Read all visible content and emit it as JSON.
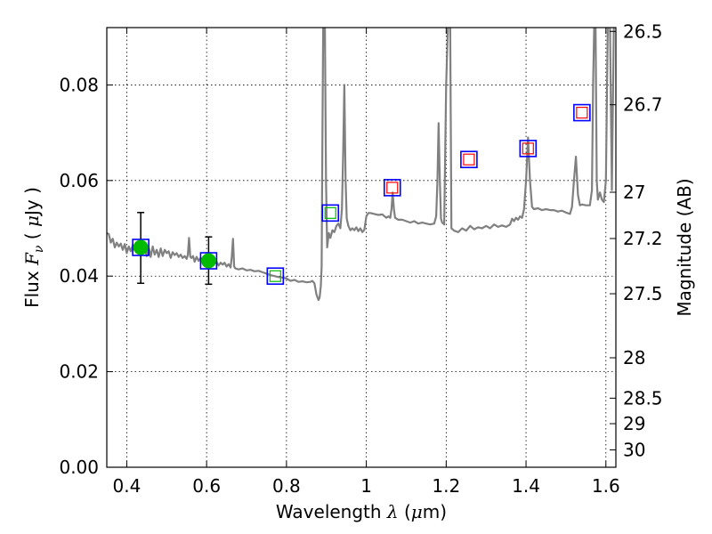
{
  "chart_data": {
    "type": "line",
    "xlabel": {
      "prefix": "Wavelength  ",
      "symbol": "λ",
      "unit_open": " (",
      "unit_mu": "μ",
      "unit_close": "m)"
    },
    "ylabel": {
      "prefix": "Flux  ",
      "symbol": "F",
      "sub": "ν",
      "unit_open": " ( ",
      "unit_mu": "μ",
      "unit_close": "Jy )"
    },
    "y2label": "Magnitude (AB)",
    "xlim": [
      0.35,
      1.625
    ],
    "ylim": [
      0.0,
      0.092
    ],
    "grid": true,
    "x_ticks": [
      {
        "v": 0.4,
        "label": "0.4"
      },
      {
        "v": 0.6,
        "label": "0.6"
      },
      {
        "v": 0.8,
        "label": "0.8"
      },
      {
        "v": 1.0,
        "label": "1"
      },
      {
        "v": 1.2,
        "label": "1.2"
      },
      {
        "v": 1.4,
        "label": "1.4"
      },
      {
        "v": 1.6,
        "label": "1.6"
      }
    ],
    "y_ticks": [
      {
        "v": 0.0,
        "label": "0.00"
      },
      {
        "v": 0.02,
        "label": "0.02"
      },
      {
        "v": 0.04,
        "label": "0.04"
      },
      {
        "v": 0.06,
        "label": "0.06"
      },
      {
        "v": 0.08,
        "label": "0.08"
      }
    ],
    "mag_ticks": [
      "26.5",
      "26.7",
      "27",
      "27.2",
      "27.5",
      "28",
      "28.5",
      "29",
      "30"
    ],
    "colors": {
      "spectrum": "#808080",
      "detection": "#00bb00",
      "model_box": "#0000ff",
      "limit_box": "#ff0000",
      "model_inner": "#00bb00",
      "errorbar": "#000000"
    },
    "series": [
      {
        "type": "line",
        "points": [
          [
            0.35,
            0.049
          ],
          [
            0.355,
            0.0488
          ],
          [
            0.36,
            0.047
          ],
          [
            0.365,
            0.0478
          ],
          [
            0.37,
            0.046
          ],
          [
            0.375,
            0.047
          ],
          [
            0.38,
            0.0462
          ],
          [
            0.385,
            0.0468
          ],
          [
            0.39,
            0.0455
          ],
          [
            0.395,
            0.0467
          ],
          [
            0.4,
            0.0448
          ],
          [
            0.405,
            0.0462
          ],
          [
            0.41,
            0.0452
          ],
          [
            0.415,
            0.0465
          ],
          [
            0.42,
            0.0455
          ],
          [
            0.425,
            0.047
          ],
          [
            0.43,
            0.0452
          ],
          [
            0.435,
            0.0462
          ],
          [
            0.44,
            0.045
          ],
          [
            0.445,
            0.0458
          ],
          [
            0.45,
            0.0442
          ],
          [
            0.455,
            0.046
          ],
          [
            0.46,
            0.044
          ],
          [
            0.465,
            0.0462
          ],
          [
            0.47,
            0.0445
          ],
          [
            0.475,
            0.0455
          ],
          [
            0.48,
            0.044
          ],
          [
            0.485,
            0.0458
          ],
          [
            0.49,
            0.0442
          ],
          [
            0.495,
            0.0455
          ],
          [
            0.5,
            0.0448
          ],
          [
            0.505,
            0.0452
          ],
          [
            0.51,
            0.0438
          ],
          [
            0.515,
            0.045
          ],
          [
            0.52,
            0.0444
          ],
          [
            0.525,
            0.0448
          ],
          [
            0.53,
            0.044
          ],
          [
            0.535,
            0.0445
          ],
          [
            0.54,
            0.0438
          ],
          [
            0.545,
            0.0442
          ],
          [
            0.55,
            0.0436
          ],
          [
            0.553,
            0.0445
          ],
          [
            0.556,
            0.048
          ],
          [
            0.559,
            0.044
          ],
          [
            0.562,
            0.0438
          ],
          [
            0.566,
            0.0442
          ],
          [
            0.57,
            0.043
          ],
          [
            0.575,
            0.044
          ],
          [
            0.58,
            0.0432
          ],
          [
            0.585,
            0.0438
          ],
          [
            0.59,
            0.0428
          ],
          [
            0.595,
            0.0436
          ],
          [
            0.6,
            0.043
          ],
          [
            0.605,
            0.0434
          ],
          [
            0.61,
            0.0428
          ],
          [
            0.615,
            0.0432
          ],
          [
            0.62,
            0.0426
          ],
          [
            0.625,
            0.043
          ],
          [
            0.63,
            0.0422
          ],
          [
            0.635,
            0.0428
          ],
          [
            0.64,
            0.0424
          ],
          [
            0.645,
            0.0428
          ],
          [
            0.65,
            0.042
          ],
          [
            0.655,
            0.0425
          ],
          [
            0.66,
            0.0418
          ],
          [
            0.663,
            0.044
          ],
          [
            0.666,
            0.0478
          ],
          [
            0.669,
            0.042
          ],
          [
            0.672,
            0.0416
          ],
          [
            0.68,
            0.0414
          ],
          [
            0.69,
            0.0416
          ],
          [
            0.7,
            0.0412
          ],
          [
            0.71,
            0.0413
          ],
          [
            0.72,
            0.041
          ],
          [
            0.73,
            0.0411
          ],
          [
            0.74,
            0.0408
          ],
          [
            0.75,
            0.0405
          ],
          [
            0.76,
            0.0402
          ],
          [
            0.77,
            0.04
          ],
          [
            0.78,
            0.0398
          ],
          [
            0.79,
            0.0397
          ],
          [
            0.8,
            0.0395
          ],
          [
            0.81,
            0.039
          ],
          [
            0.82,
            0.0392
          ],
          [
            0.83,
            0.0388
          ],
          [
            0.84,
            0.0389
          ],
          [
            0.85,
            0.0387
          ],
          [
            0.86,
            0.0388
          ],
          [
            0.865,
            0.039
          ],
          [
            0.87,
            0.0385
          ],
          [
            0.875,
            0.0362
          ],
          [
            0.88,
            0.035
          ],
          [
            0.883,
            0.0355
          ],
          [
            0.886,
            0.038
          ],
          [
            0.888,
            0.042
          ],
          [
            0.89,
            0.07
          ],
          [
            0.892,
            0.094
          ],
          [
            0.896,
            0.094
          ],
          [
            0.899,
            0.06
          ],
          [
            0.902,
            0.046
          ],
          [
            0.906,
            0.049
          ],
          [
            0.91,
            0.048
          ],
          [
            0.915,
            0.0496
          ],
          [
            0.92,
            0.0492
          ],
          [
            0.925,
            0.0505
          ],
          [
            0.93,
            0.051
          ],
          [
            0.935,
            0.05
          ],
          [
            0.939,
            0.054
          ],
          [
            0.942,
            0.066
          ],
          [
            0.945,
            0.08
          ],
          [
            0.948,
            0.06
          ],
          [
            0.951,
            0.052
          ],
          [
            0.955,
            0.0505
          ],
          [
            0.96,
            0.0496
          ],
          [
            0.965,
            0.05
          ],
          [
            0.97,
            0.0496
          ],
          [
            0.975,
            0.0502
          ],
          [
            0.98,
            0.0494
          ],
          [
            0.985,
            0.05
          ],
          [
            0.99,
            0.0492
          ],
          [
            0.995,
            0.0497
          ],
          [
            1.0,
            0.0525
          ],
          [
            1.005,
            0.0532
          ],
          [
            1.01,
            0.0532
          ],
          [
            1.02,
            0.053
          ],
          [
            1.03,
            0.0528
          ],
          [
            1.04,
            0.0529
          ],
          [
            1.05,
            0.0522
          ],
          [
            1.055,
            0.0525
          ],
          [
            1.06,
            0.0522
          ],
          [
            1.063,
            0.054
          ],
          [
            1.066,
            0.0575
          ],
          [
            1.069,
            0.054
          ],
          [
            1.072,
            0.0522
          ],
          [
            1.08,
            0.0518
          ],
          [
            1.09,
            0.0518
          ],
          [
            1.1,
            0.0515
          ],
          [
            1.11,
            0.0512
          ],
          [
            1.12,
            0.0515
          ],
          [
            1.13,
            0.051
          ],
          [
            1.14,
            0.0512
          ],
          [
            1.15,
            0.051
          ],
          [
            1.16,
            0.0508
          ],
          [
            1.17,
            0.051
          ],
          [
            1.175,
            0.0525
          ],
          [
            1.178,
            0.06
          ],
          [
            1.181,
            0.072
          ],
          [
            1.184,
            0.06
          ],
          [
            1.187,
            0.052
          ],
          [
            1.19,
            0.0512
          ],
          [
            1.195,
            0.0508
          ],
          [
            1.2,
            0.08
          ],
          [
            1.205,
            0.094
          ],
          [
            1.21,
            0.094
          ],
          [
            1.213,
            0.05
          ],
          [
            1.22,
            0.0495
          ],
          [
            1.23,
            0.0492
          ],
          [
            1.24,
            0.05
          ],
          [
            1.25,
            0.0495
          ],
          [
            1.26,
            0.0505
          ],
          [
            1.27,
            0.0498
          ],
          [
            1.28,
            0.0502
          ],
          [
            1.29,
            0.05
          ],
          [
            1.3,
            0.0505
          ],
          [
            1.31,
            0.05
          ],
          [
            1.32,
            0.0508
          ],
          [
            1.33,
            0.0503
          ],
          [
            1.34,
            0.0506
          ],
          [
            1.35,
            0.0503
          ],
          [
            1.36,
            0.0508
          ],
          [
            1.365,
            0.052
          ],
          [
            1.37,
            0.0515
          ],
          [
            1.375,
            0.0522
          ],
          [
            1.38,
            0.0518
          ],
          [
            1.385,
            0.0525
          ],
          [
            1.39,
            0.0522
          ],
          [
            1.395,
            0.054
          ],
          [
            1.4,
            0.06
          ],
          [
            1.405,
            0.069
          ],
          [
            1.41,
            0.06
          ],
          [
            1.415,
            0.0545
          ],
          [
            1.42,
            0.054
          ],
          [
            1.43,
            0.0542
          ],
          [
            1.44,
            0.0538
          ],
          [
            1.45,
            0.054
          ],
          [
            1.46,
            0.0538
          ],
          [
            1.47,
            0.0538
          ],
          [
            1.48,
            0.0535
          ],
          [
            1.49,
            0.0537
          ],
          [
            1.5,
            0.0533
          ],
          [
            1.51,
            0.053
          ],
          [
            1.515,
            0.0545
          ],
          [
            1.52,
            0.06
          ],
          [
            1.525,
            0.065
          ],
          [
            1.53,
            0.057
          ],
          [
            1.535,
            0.0548
          ],
          [
            1.54,
            0.055
          ],
          [
            1.55,
            0.0548
          ],
          [
            1.56,
            0.0548
          ],
          [
            1.565,
            0.058
          ],
          [
            1.568,
            0.08
          ],
          [
            1.571,
            0.094
          ],
          [
            1.574,
            0.094
          ],
          [
            1.577,
            0.06
          ],
          [
            1.58,
            0.056
          ],
          [
            1.585,
            0.0575
          ],
          [
            1.59,
            0.056
          ],
          [
            1.595,
            0.0555
          ],
          [
            1.6,
            0.06
          ],
          [
            1.605,
            0.094
          ],
          [
            1.61,
            0.094
          ],
          [
            1.615,
            0.058
          ],
          [
            1.62,
            0.094
          ],
          [
            1.625,
            0.094
          ]
        ]
      },
      {
        "type": "errorbar",
        "points": [
          {
            "x": 0.435,
            "y": 0.046,
            "ylo": 0.0385,
            "yhi": 0.0533
          },
          {
            "x": 0.605,
            "y": 0.0432,
            "ylo": 0.0383,
            "yhi": 0.0482
          }
        ]
      },
      {
        "type": "scatter",
        "marker": "box",
        "points": [
          {
            "x": 0.435,
            "y": 0.046,
            "inner": "detection"
          },
          {
            "x": 0.605,
            "y": 0.0432,
            "inner": "detection"
          },
          {
            "x": 0.772,
            "y": 0.04,
            "inner": "model"
          },
          {
            "x": 0.91,
            "y": 0.0532,
            "inner": "model"
          },
          {
            "x": 1.065,
            "y": 0.0585,
            "inner": "limit"
          },
          {
            "x": 1.257,
            "y": 0.0644,
            "inner": "limit"
          },
          {
            "x": 1.405,
            "y": 0.0667,
            "inner": "limit"
          },
          {
            "x": 1.54,
            "y": 0.0742,
            "inner": "limit"
          }
        ]
      }
    ]
  }
}
